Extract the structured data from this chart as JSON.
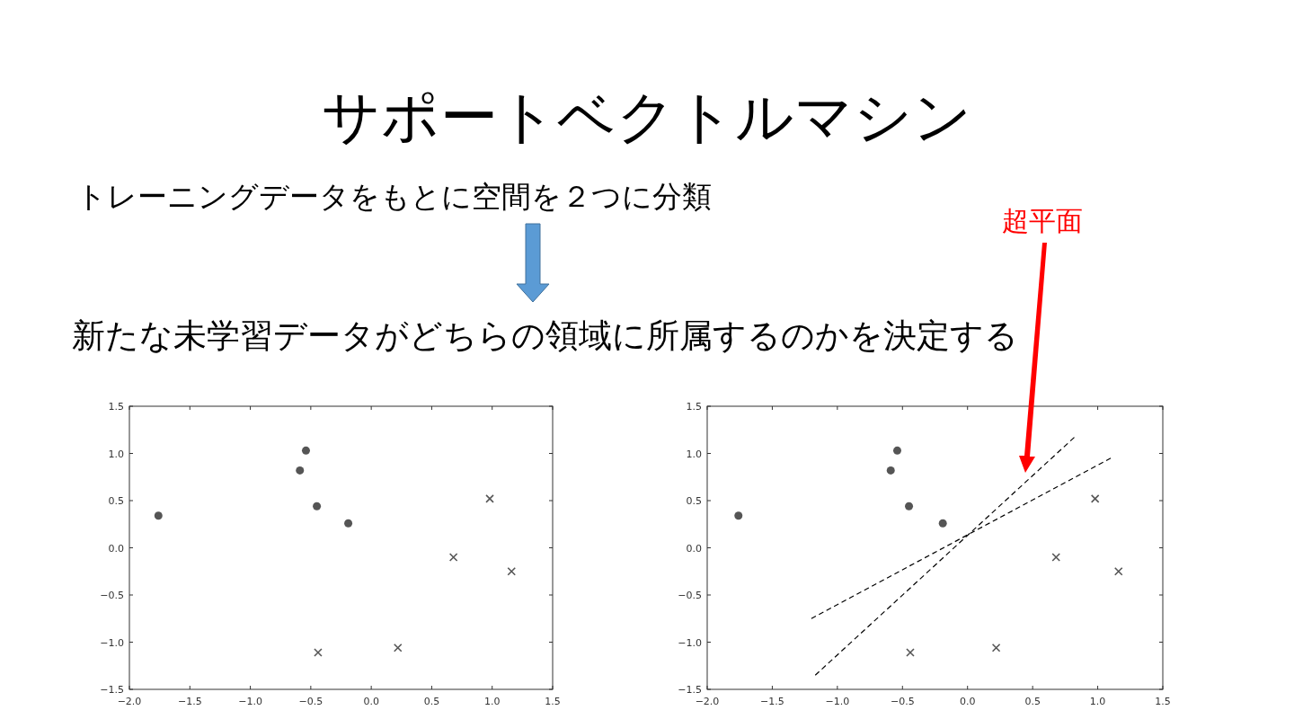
{
  "chart_data": [
    {
      "type": "scatter",
      "title": "サポートベクトルマシン",
      "annotations": [
        "トレーニングデータをもとに空間を２つに分類",
        "新たな未学習データがどちらの領域に所属するのかを決定する"
      ],
      "xlim": [
        -2,
        1.5
      ],
      "ylim": [
        -1.5,
        1.5
      ],
      "xticks": [
        {
          "value": -2,
          "label": "−2.0"
        },
        {
          "value": -1.5,
          "label": "−1.5"
        },
        {
          "value": -1,
          "label": "−1.0"
        },
        {
          "value": -0.5,
          "label": "−0.5"
        },
        {
          "value": 0,
          "label": "0.0"
        },
        {
          "value": 0.5,
          "label": "0.5"
        },
        {
          "value": 1,
          "label": "1.0"
        },
        {
          "value": 1.5,
          "label": "1.5"
        }
      ],
      "yticks": [
        {
          "value": -1.5,
          "label": "−1.5"
        },
        {
          "value": -1,
          "label": "−1.0"
        },
        {
          "value": -0.5,
          "label": "−0.5"
        },
        {
          "value": 0,
          "label": "0.0"
        },
        {
          "value": 0.5,
          "label": "0.5"
        },
        {
          "value": 1,
          "label": "1.0"
        },
        {
          "value": 1.5,
          "label": "1.5"
        }
      ],
      "grid": false,
      "series": [
        {
          "type": "scatter",
          "marker": "circle",
          "color": "#555555",
          "x": [
            -1.76,
            -0.54,
            -0.59,
            -0.45,
            -0.19
          ],
          "values": [
            0.34,
            1.03,
            0.82,
            0.44,
            0.26
          ]
        },
        {
          "type": "scatter",
          "marker": "cross",
          "color": "#555555",
          "x": [
            0.98,
            0.68,
            1.16,
            -0.44,
            0.22
          ],
          "values": [
            0.52,
            -0.1,
            -0.25,
            -1.11,
            -1.06
          ]
        }
      ]
    },
    {
      "type": "scatter",
      "annotations": [
        "超平面"
      ],
      "xlim": [
        -2,
        1.5
      ],
      "ylim": [
        -1.5,
        1.5
      ],
      "xticks": [
        {
          "value": -2,
          "label": "−2.0"
        },
        {
          "value": -1.5,
          "label": "−1.5"
        },
        {
          "value": -1,
          "label": "−1.0"
        },
        {
          "value": -0.5,
          "label": "−0.5"
        },
        {
          "value": 0,
          "label": "0.0"
        },
        {
          "value": 0.5,
          "label": "0.5"
        },
        {
          "value": 1,
          "label": "1.0"
        },
        {
          "value": 1.5,
          "label": "1.5"
        }
      ],
      "yticks": [
        {
          "value": -1.5,
          "label": "−1.5"
        },
        {
          "value": -1,
          "label": "−1.0"
        },
        {
          "value": -0.5,
          "label": "−0.5"
        },
        {
          "value": 0,
          "label": "0.0"
        },
        {
          "value": 0.5,
          "label": "0.5"
        },
        {
          "value": 1,
          "label": "1.0"
        },
        {
          "value": 1.5,
          "label": "1.5"
        }
      ],
      "grid": false,
      "series": [
        {
          "type": "scatter",
          "marker": "circle",
          "color": "#555555",
          "x": [
            -1.76,
            -0.54,
            -0.59,
            -0.45,
            -0.19
          ],
          "values": [
            0.34,
            1.03,
            0.82,
            0.44,
            0.26
          ]
        },
        {
          "type": "scatter",
          "marker": "cross",
          "color": "#555555",
          "x": [
            0.98,
            0.68,
            1.16,
            -0.44,
            0.22
          ],
          "values": [
            0.52,
            -0.1,
            -0.25,
            -1.11,
            -1.06
          ]
        },
        {
          "type": "line",
          "marker": "none",
          "line_style": "dashed",
          "color": "#000000",
          "x": [
            -1.17,
            0.82
          ],
          "values": [
            -1.35,
            1.17
          ]
        },
        {
          "type": "line",
          "marker": "none",
          "line_style": "dashed",
          "color": "#000000",
          "x": [
            -1.2,
            1.1
          ],
          "values": [
            -0.75,
            0.95
          ]
        }
      ]
    }
  ]
}
